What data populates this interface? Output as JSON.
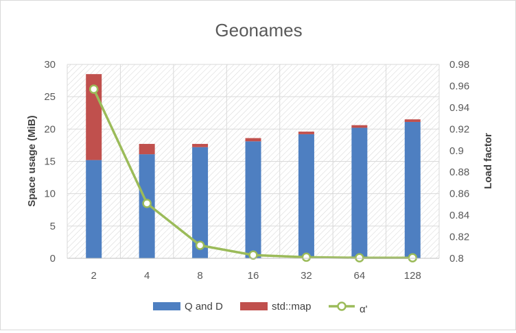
{
  "chart_data": {
    "type": "bar",
    "title": "Geonames",
    "xlabel": "",
    "categories": [
      "2",
      "4",
      "8",
      "16",
      "32",
      "64",
      "128"
    ],
    "y_left": {
      "label": "Space usage (MiB)",
      "ylim": [
        0,
        30
      ],
      "ticks": [
        "0",
        "5",
        "10",
        "15",
        "20",
        "25",
        "30"
      ]
    },
    "y_right": {
      "label": "Load factor",
      "ylim": [
        0.8,
        0.98
      ],
      "ticks": [
        "0.8",
        "0.82",
        "0.84",
        "0.86",
        "0.88",
        "0.9",
        "0.92",
        "0.94",
        "0.96",
        "0.98"
      ]
    },
    "stacked": true,
    "series": [
      {
        "name": "Q and D",
        "kind": "bar",
        "axis": "left",
        "color": "#4e7fc1",
        "values": [
          15.2,
          16.1,
          17.2,
          18.1,
          19.2,
          20.2,
          21.1
        ]
      },
      {
        "name": "std::map",
        "kind": "bar",
        "axis": "left",
        "color": "#c0504d",
        "values": [
          13.3,
          1.6,
          0.5,
          0.5,
          0.4,
          0.4,
          0.4
        ]
      },
      {
        "name": "α'",
        "kind": "line",
        "axis": "right",
        "color": "#9bbb59",
        "values": [
          0.957,
          0.851,
          0.812,
          0.803,
          0.801,
          0.8005,
          0.8005
        ]
      }
    ],
    "grid": true,
    "legend_position": "bottom"
  }
}
